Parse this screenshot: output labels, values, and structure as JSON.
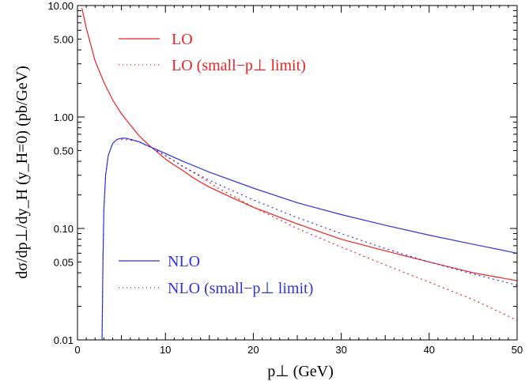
{
  "chart_data": {
    "type": "line",
    "xlabel": "p⊥ (GeV)",
    "ylabel": "dσ/dp⊥/dy_H (y_H=0) (pb/GeV)",
    "xlim": [
      0,
      50
    ],
    "ylim": [
      0.01,
      10
    ],
    "y_scale": "log",
    "grid": false,
    "x_ticks": [
      0,
      10,
      20,
      30,
      40,
      50
    ],
    "x_tick_labels": [
      "0",
      "10",
      "20",
      "30",
      "40",
      "50"
    ],
    "y_ticks": [
      0.01,
      0.05,
      0.1,
      0.5,
      1,
      5,
      10
    ],
    "y_tick_labels": [
      "0.01",
      "0.05",
      "0.10",
      "0.50",
      "1.00",
      "5.00",
      "10.00"
    ],
    "legend": [
      {
        "label": "LO",
        "color": "#ee2222",
        "style": "solid"
      },
      {
        "label": "LO (small−p⊥ limit)",
        "color": "#ee2222",
        "style": "dotted"
      },
      {
        "label": "NLO",
        "color": "#3333dd",
        "style": "solid"
      },
      {
        "label": "NLO (small−p⊥ limit)",
        "color": "#3333dd",
        "style": "dotted"
      }
    ],
    "series": [
      {
        "name": "LO",
        "color": "#ee2222",
        "style": "solid",
        "x": [
          0.5,
          1,
          2,
          3,
          4,
          5,
          6,
          7,
          8,
          9,
          10,
          11,
          12,
          13,
          14,
          15,
          17.5,
          20,
          25,
          30,
          35,
          40,
          45,
          50
        ],
        "y": [
          9.5,
          6.3,
          3.2,
          2.05,
          1.42,
          1.07,
          0.85,
          0.68,
          0.57,
          0.49,
          0.42,
          0.37,
          0.33,
          0.29,
          0.26,
          0.235,
          0.19,
          0.155,
          0.11,
          0.08,
          0.063,
          0.05,
          0.04,
          0.034
        ]
      },
      {
        "name": "LO (small−p⊥ limit)",
        "color": "#ee2222",
        "style": "dotted",
        "x": [
          5,
          6,
          7,
          8,
          9,
          10,
          12,
          14,
          16,
          18,
          20,
          25,
          30,
          35,
          40,
          45,
          50
        ],
        "y": [
          0.63,
          0.62,
          0.6,
          0.55,
          0.5,
          0.45,
          0.36,
          0.29,
          0.23,
          0.19,
          0.155,
          0.1,
          0.068,
          0.047,
          0.033,
          0.023,
          0.015
        ]
      },
      {
        "name": "NLO",
        "color": "#3333dd",
        "style": "solid",
        "x": [
          2.8,
          2.9,
          3.0,
          3.2,
          3.5,
          4,
          4.5,
          5,
          5.5,
          6,
          7,
          8,
          9,
          10,
          12,
          15,
          20,
          25,
          30,
          35,
          40,
          45,
          50
        ],
        "y": [
          0.01,
          0.05,
          0.15,
          0.3,
          0.45,
          0.58,
          0.63,
          0.645,
          0.645,
          0.63,
          0.6,
          0.55,
          0.51,
          0.47,
          0.4,
          0.32,
          0.23,
          0.17,
          0.133,
          0.107,
          0.087,
          0.072,
          0.06
        ]
      },
      {
        "name": "NLO (small−p⊥ limit)",
        "color": "#3333dd",
        "style": "dotted",
        "x": [
          2.8,
          2.9,
          3.0,
          3.2,
          3.5,
          4,
          4.5,
          5,
          5.5,
          6,
          7,
          8,
          9,
          10,
          12,
          15,
          20,
          25,
          30,
          35,
          40,
          45,
          50
        ],
        "y": [
          0.01,
          0.05,
          0.15,
          0.3,
          0.45,
          0.58,
          0.63,
          0.645,
          0.645,
          0.635,
          0.6,
          0.55,
          0.5,
          0.45,
          0.36,
          0.27,
          0.18,
          0.125,
          0.09,
          0.066,
          0.05,
          0.039,
          0.031
        ]
      }
    ]
  }
}
